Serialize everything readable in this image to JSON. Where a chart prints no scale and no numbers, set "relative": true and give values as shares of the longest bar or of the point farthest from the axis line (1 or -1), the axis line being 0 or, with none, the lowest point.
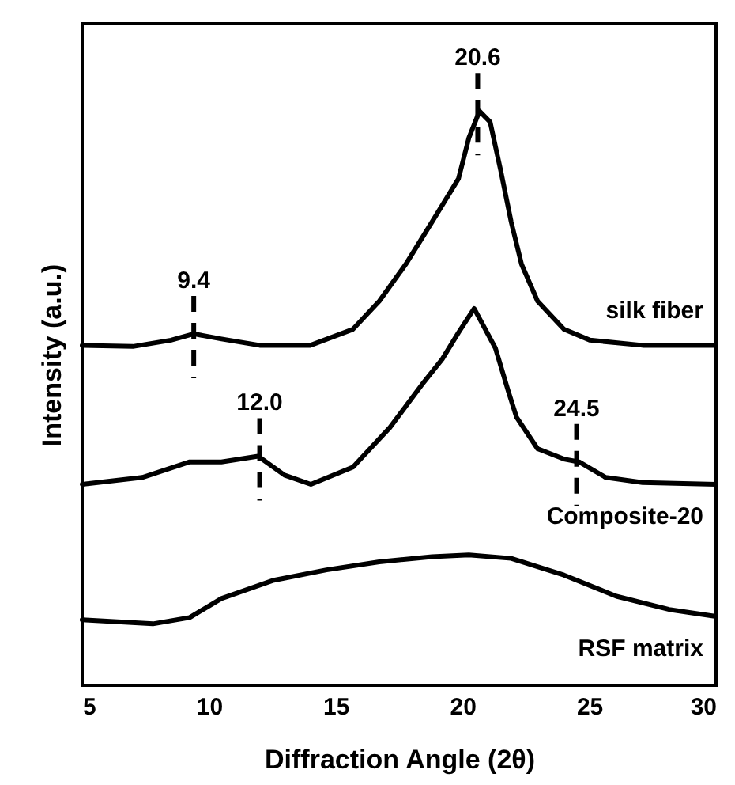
{
  "chart_data": {
    "type": "line",
    "xlabel": "Diffraction Angle (2θ)",
    "ylabel": "Intensity (a.u.)",
    "relative": true,
    "xlim": [
      5,
      30
    ],
    "xticks": [
      5,
      10,
      15,
      20,
      25,
      30
    ],
    "grid": false,
    "marker": "none",
    "line_style": "solid",
    "series": [
      {
        "name": "silk fiber",
        "color": "#000000",
        "x": [
          5,
          7,
          8.5,
          9.4,
          10.5,
          12,
          14,
          15.68,
          16.72,
          17.76,
          18.8,
          19.84,
          20.25,
          20.67,
          21.09,
          21.5,
          21.92,
          22.33,
          22.96,
          24.0,
          25.03,
          27.1,
          30
        ],
        "values": [
          0.592,
          0.59,
          0.601,
          0.612,
          0.603,
          0.592,
          0.592,
          0.62,
          0.669,
          0.733,
          0.807,
          0.882,
          0.953,
          1,
          0.981,
          0.898,
          0.807,
          0.733,
          0.669,
          0.62,
          0.601,
          0.592,
          0.592
        ]
      },
      {
        "name": "Composite-20",
        "color": "#000000",
        "x": [
          5,
          7.37,
          9.24,
          10.49,
          11.94,
          12.98,
          14.02,
          15.68,
          17.14,
          18.39,
          19.2,
          19.84,
          20.46,
          21.3,
          21.8,
          22.13,
          22.96,
          24.0,
          24.6,
          25.65,
          27.1,
          30
        ],
        "values": [
          0.35,
          0.362,
          0.389,
          0.389,
          0.399,
          0.366,
          0.35,
          0.38,
          0.449,
          0.523,
          0.568,
          0.614,
          0.656,
          0.587,
          0.513,
          0.467,
          0.412,
          0.394,
          0.389,
          0.362,
          0.353,
          0.35
        ]
      },
      {
        "name": "RSF matrix",
        "color": "#000000",
        "x": [
          5,
          7.79,
          9.24,
          10.49,
          12.56,
          14.64,
          16.72,
          18.8,
          20.25,
          21.92,
          24.0,
          26.07,
          28.15,
          30
        ],
        "values": [
          0.114,
          0.107,
          0.118,
          0.151,
          0.183,
          0.201,
          0.215,
          0.224,
          0.227,
          0.221,
          0.192,
          0.155,
          0.132,
          0.12
        ]
      }
    ],
    "annotations": [
      {
        "text": "20.6",
        "x": 20.6,
        "y": 1
      },
      {
        "text": "9.4",
        "x": 9.4,
        "y": 0.612
      },
      {
        "text": "12.0",
        "x": 12.0,
        "y": 0.399
      },
      {
        "text": "24.5",
        "x": 24.5,
        "y": 0.389
      }
    ]
  }
}
